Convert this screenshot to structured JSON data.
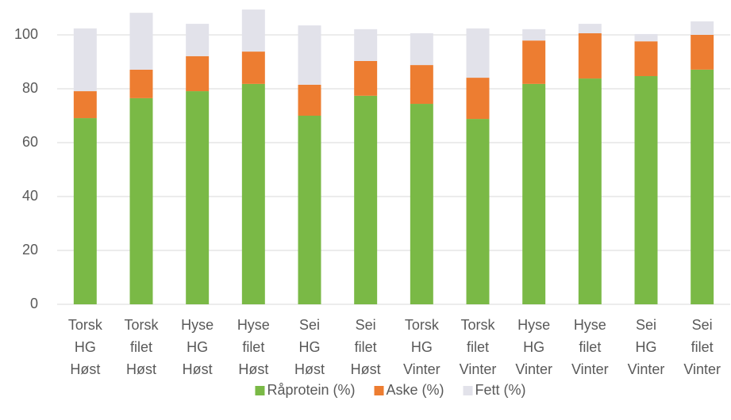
{
  "chart_data": {
    "type": "stacked_bar",
    "categories": [
      [
        "Torsk",
        "HG",
        "Høst"
      ],
      [
        "Torsk",
        "filet",
        "Høst"
      ],
      [
        "Hyse",
        "HG",
        "Høst"
      ],
      [
        "Hyse",
        "filet",
        "Høst"
      ],
      [
        "Sei",
        "HG",
        "Høst"
      ],
      [
        "Sei",
        "filet",
        "Høst"
      ],
      [
        "Torsk",
        "HG",
        "Vinter"
      ],
      [
        "Torsk",
        "filet",
        "Vinter"
      ],
      [
        "Hyse",
        "HG",
        "Vinter"
      ],
      [
        "Hyse",
        "filet",
        "Vinter"
      ],
      [
        "Sei",
        "HG",
        "Vinter"
      ],
      [
        "Sei",
        "filet",
        "Vinter"
      ]
    ],
    "series": [
      {
        "name": "Råprotein (%)",
        "color": "#7ab946",
        "values": [
          69.1,
          76.5,
          79.1,
          81.8,
          70.0,
          77.4,
          74.4,
          68.8,
          81.8,
          83.8,
          84.7,
          87.1
        ]
      },
      {
        "name": "Aske (%)",
        "color": "#ed7d31",
        "values": [
          10.0,
          10.6,
          13.0,
          12.0,
          11.5,
          12.9,
          14.4,
          15.3,
          16.1,
          16.8,
          12.9,
          12.9
        ]
      },
      {
        "name": "Fett (%)",
        "color": "#e2e2ea",
        "values": [
          23.3,
          21.1,
          12.0,
          15.6,
          22.0,
          11.8,
          11.8,
          18.3,
          4.2,
          3.5,
          2.7,
          5.0
        ]
      }
    ],
    "ylim": [
      0,
      110
    ],
    "yticks": [
      0,
      20,
      40,
      60,
      80,
      100
    ],
    "grid": true,
    "legend": "bottom"
  }
}
